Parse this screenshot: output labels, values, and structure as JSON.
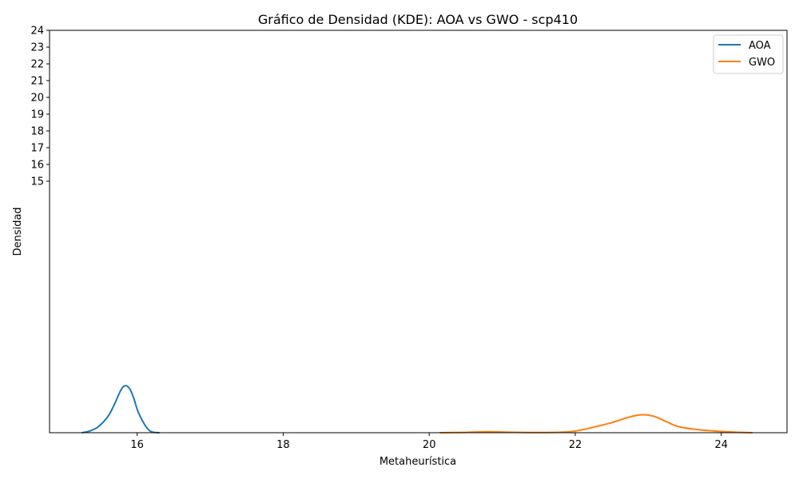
{
  "chart_data": {
    "type": "line",
    "title": "Gráfico de Densidad (KDE): AOA vs GWO - scp410",
    "xlabel": "Metaheurística",
    "ylabel": "Densidad",
    "xlim": [
      14.8,
      24.9
    ],
    "ylim": [
      0,
      24
    ],
    "xticks": [
      16,
      18,
      20,
      22,
      24
    ],
    "xtick_labels": [
      "16",
      "18",
      "20",
      "22",
      "24"
    ],
    "yticks": [
      15,
      16,
      17,
      18,
      19,
      20,
      21,
      22,
      23,
      24
    ],
    "ytick_labels": [
      "15",
      "16",
      "17",
      "18",
      "19",
      "20",
      "21",
      "22",
      "23",
      "24"
    ],
    "grid": false,
    "legend_position": "top-right",
    "series": [
      {
        "name": "AOA",
        "color": "#1f77b4",
        "x": [
          15.25,
          15.35,
          15.45,
          15.55,
          15.62,
          15.7,
          15.75,
          15.8,
          15.85,
          15.9,
          15.95,
          16.0,
          16.05,
          16.1,
          16.15,
          16.2,
          16.25,
          16.3
        ],
        "y": [
          0.0,
          0.1,
          0.3,
          0.7,
          1.1,
          1.8,
          2.3,
          2.7,
          2.8,
          2.6,
          2.1,
          1.4,
          0.9,
          0.5,
          0.2,
          0.05,
          0.01,
          0.0
        ]
      },
      {
        "name": "GWO",
        "color": "#ff7f0e",
        "x": [
          20.15,
          20.5,
          20.8,
          21.1,
          21.5,
          21.9,
          22.1,
          22.3,
          22.5,
          22.7,
          22.85,
          22.95,
          23.1,
          23.25,
          23.4,
          23.6,
          23.9,
          24.2,
          24.42
        ],
        "y": [
          0.0,
          0.02,
          0.06,
          0.03,
          0.01,
          0.05,
          0.18,
          0.38,
          0.6,
          0.88,
          1.04,
          1.07,
          0.95,
          0.65,
          0.38,
          0.22,
          0.1,
          0.03,
          0.0
        ]
      }
    ]
  }
}
